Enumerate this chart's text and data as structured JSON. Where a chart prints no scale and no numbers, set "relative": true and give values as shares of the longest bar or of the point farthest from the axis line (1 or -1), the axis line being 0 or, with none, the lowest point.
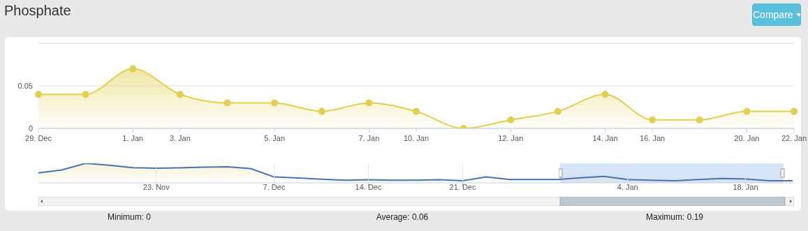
{
  "chart_data": [
    {
      "type": "area",
      "title": "Phosphate",
      "categories": [
        "29. Dec",
        null,
        "1. Jan",
        "3. Jan",
        null,
        "5. Jan",
        null,
        "7. Jan",
        "10. Jan",
        null,
        "12. Jan",
        null,
        "14. Jan",
        "16. Jan",
        null,
        "20. Jan",
        "22. Jan"
      ],
      "ylim": [
        0,
        0.1
      ],
      "yticks": [
        0,
        0.05
      ],
      "grid": "y",
      "marker": "circle",
      "series": [
        {
          "color": "#e3cf4f",
          "values": [
            0.04,
            0.04,
            0.07,
            0.04,
            0.03,
            0.03,
            0.02,
            0.03,
            0.02,
            0,
            0.01,
            0.02,
            0.04,
            0.01,
            0.01,
            0.02,
            0.02
          ]
        }
      ],
      "annotations": [
        "Compare",
        "Minimum: 0",
        "Average: 0.06",
        "Maximum: 0.19"
      ]
    },
    {
      "type": "area",
      "relative": true,
      "categories": [
        null,
        null,
        null,
        null,
        null,
        "23. Nov",
        null,
        null,
        null,
        null,
        "7. Dec",
        null,
        null,
        null,
        "14. Dec",
        null,
        null,
        null,
        "21. Dec",
        null,
        null,
        null,
        null,
        null,
        null,
        "4. Jan",
        null,
        null,
        null,
        null,
        "18. Jan",
        null,
        null
      ],
      "grid": "x",
      "series": [
        {
          "color": "#4a72b0",
          "values": [
            0.51,
            0.66,
            1,
            0.9,
            0.78,
            0.75,
            0.77,
            0.8,
            0.82,
            0.73,
            0.3,
            0.25,
            0.19,
            0.13,
            0.16,
            0.13,
            0.13,
            0.16,
            0.11,
            0.3,
            0.17,
            0.17,
            0.17,
            0.26,
            0.33,
            0.17,
            0.13,
            0.11,
            0.17,
            0.22,
            0.2,
            0.11,
            0.11
          ]
        }
      ]
    }
  ]
}
